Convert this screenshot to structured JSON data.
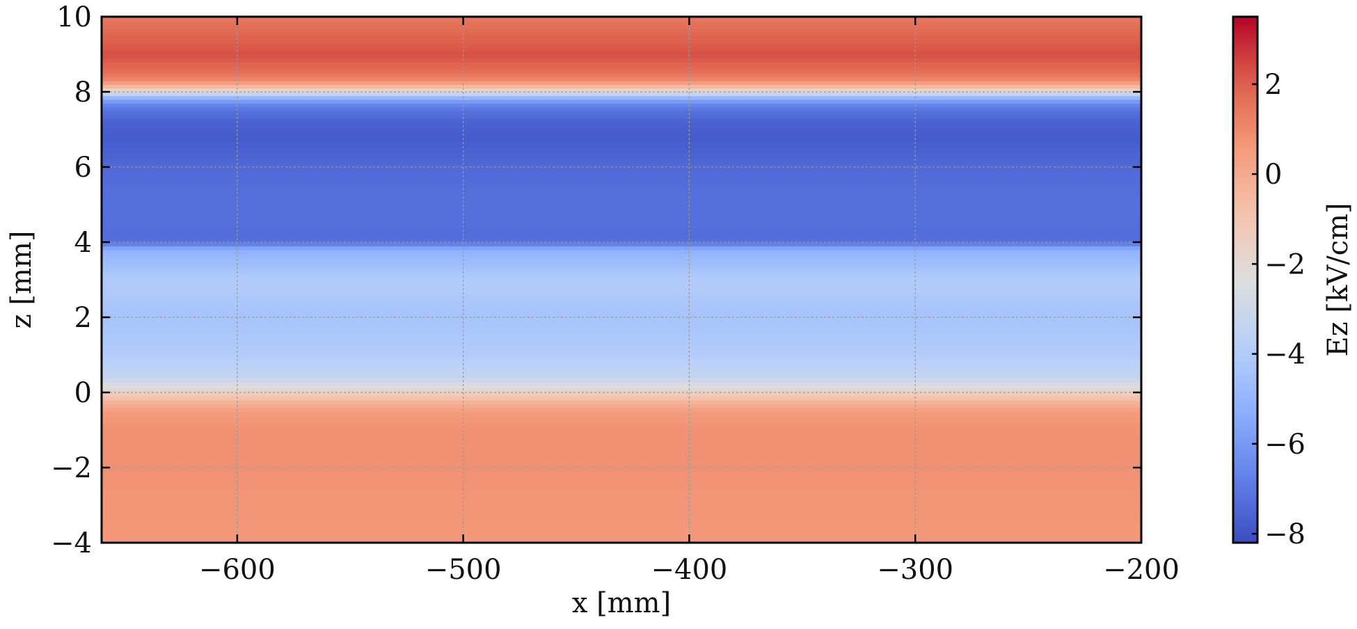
{
  "chart_data": {
    "type": "heatmap",
    "title": "",
    "xlabel": "x [mm]",
    "ylabel": "z [mm]",
    "xlim": [
      -660,
      -200
    ],
    "ylim": [
      -4,
      10
    ],
    "x_ticks": [
      -600,
      -500,
      -400,
      -300,
      -200
    ],
    "x_tick_labels": [
      "−600",
      "−500",
      "−400",
      "−300",
      "−200"
    ],
    "y_ticks": [
      -4,
      -2,
      0,
      2,
      4,
      6,
      8,
      10
    ],
    "y_tick_labels": [
      "−4",
      "−2",
      "0",
      "2",
      "4",
      "6",
      "8",
      "10"
    ],
    "grid": true,
    "colormap": "coolwarm",
    "colorbar": {
      "label": "Ez [kV/cm]",
      "range": [
        -8.2,
        3.5
      ],
      "ticks": [
        -8,
        -6,
        -4,
        -2,
        0,
        2
      ],
      "tick_labels": [
        "−8",
        "−6",
        "−4",
        "−2",
        "0",
        "2"
      ]
    },
    "z_profile": {
      "note_units": "z in mm, Ez in kV/cm, field approximately uniform along x",
      "z": [
        -4,
        -3,
        -2,
        -1,
        -0.5,
        -0.2,
        0,
        0.2,
        0.4,
        1,
        2,
        3,
        3.8,
        4.0,
        4.2,
        5,
        6,
        6.8,
        7.2,
        7.5,
        7.7,
        7.85,
        8.0,
        8.15,
        8.3,
        8.6,
        9,
        9.5,
        10
      ],
      "Ez": [
        0.6,
        0.7,
        0.8,
        0.8,
        0.5,
        -0.5,
        -1.5,
        -2.5,
        -3.3,
        -4.0,
        -4.4,
        -4.0,
        -5.2,
        -7.2,
        -7.3,
        -7.2,
        -7.4,
        -7.8,
        -7.6,
        -7.2,
        -6.5,
        -5.0,
        -2.5,
        -0.5,
        1.0,
        1.8,
        2.3,
        1.9,
        1.4
      ]
    }
  }
}
